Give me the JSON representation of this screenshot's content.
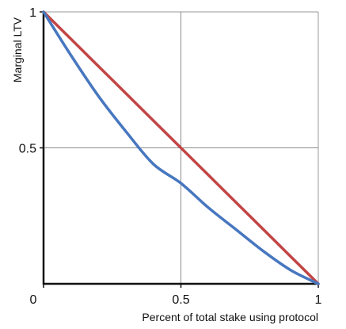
{
  "chart_data": {
    "type": "line",
    "title": "",
    "xlabel": "Percent of total stake using protocol",
    "ylabel": "Marginal LTV",
    "xlim": [
      0,
      1
    ],
    "ylim": [
      0,
      1
    ],
    "grid": true,
    "x_ticks": [
      {
        "value": 0,
        "label": "0"
      },
      {
        "value": 0.5,
        "label": "0.5"
      },
      {
        "value": 1,
        "label": "1"
      }
    ],
    "y_ticks": [
      {
        "value": 0.5,
        "label": "0.5"
      },
      {
        "value": 1,
        "label": "1"
      }
    ],
    "series": [
      {
        "color": "#c24545",
        "x": [
          0,
          0.1,
          0.2,
          0.3,
          0.4,
          0.5,
          0.6,
          0.7,
          0.8,
          0.9,
          1
        ],
        "y": [
          1,
          0.9,
          0.8,
          0.7,
          0.6,
          0.5,
          0.4,
          0.3,
          0.2,
          0.1,
          0
        ]
      },
      {
        "color": "#4777bf",
        "x": [
          0,
          0.1,
          0.2,
          0.3,
          0.4,
          0.5,
          0.6,
          0.7,
          0.8,
          0.9,
          1
        ],
        "y": [
          1,
          0.84,
          0.69,
          0.56,
          0.44,
          0.37,
          0.28,
          0.2,
          0.12,
          0.05,
          0
        ]
      }
    ]
  }
}
